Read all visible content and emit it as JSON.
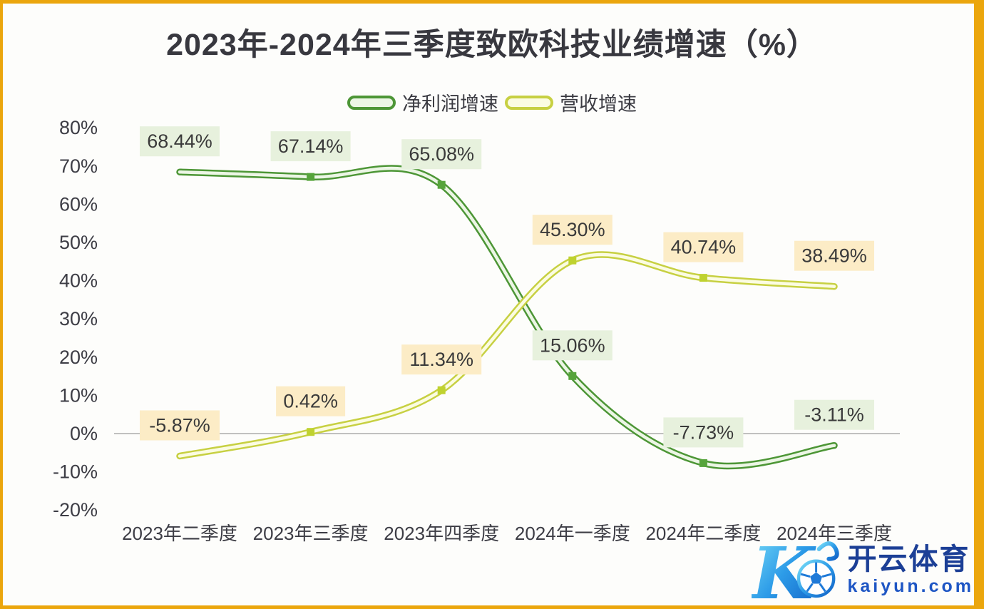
{
  "page": {
    "border_color": "#eba60d",
    "background_color": "#fdfdfb",
    "zero_line_color": "#ababab"
  },
  "chart_data": {
    "type": "line",
    "title": "2023年-2024年三季度致欧科技业绩增速（%）",
    "categories": [
      "2023年二季度",
      "2023年三季度",
      "2023年四季度",
      "2024年一季度",
      "2024年二季度",
      "2024年三季度"
    ],
    "series": [
      {
        "name": "净利润增速",
        "values": [
          68.44,
          67.14,
          65.08,
          15.06,
          -7.73,
          -3.11
        ],
        "labels": [
          "68.44%",
          "67.14%",
          "65.08%",
          "15.06%",
          "-7.73%",
          "-3.11%"
        ],
        "line_color": "#4d9636",
        "inner_color": "#ecf6e5",
        "marker_color": "#56a43b",
        "label_bg": "#e7f1dd"
      },
      {
        "name": "营收增速",
        "values": [
          -5.87,
          0.42,
          11.34,
          45.3,
          40.74,
          38.49
        ],
        "labels": [
          "-5.87%",
          "0.42%",
          "11.34%",
          "45.30%",
          "40.74%",
          "38.49%"
        ],
        "line_color": "#c7d042",
        "inner_color": "#fbfce2",
        "marker_color": "#bfd22f",
        "label_bg": "#fcecc6"
      }
    ],
    "y_ticks": [
      "80%",
      "70%",
      "60%",
      "50%",
      "40%",
      "30%",
      "20%",
      "10%",
      "0%",
      "-10%",
      "-20%"
    ],
    "ylim": [
      -20,
      80
    ],
    "y_tick_step": 10,
    "grid": "zero-line-only",
    "legend_position": "top",
    "label_format": "{value}%"
  },
  "watermark": {
    "brand": "开云体育",
    "domain": "kaiyun.com",
    "logo_letter": "K",
    "logo_icon": "soccer-ball-icon",
    "brand_color": "#1c3f96",
    "domain_color": "#1e56c4"
  }
}
